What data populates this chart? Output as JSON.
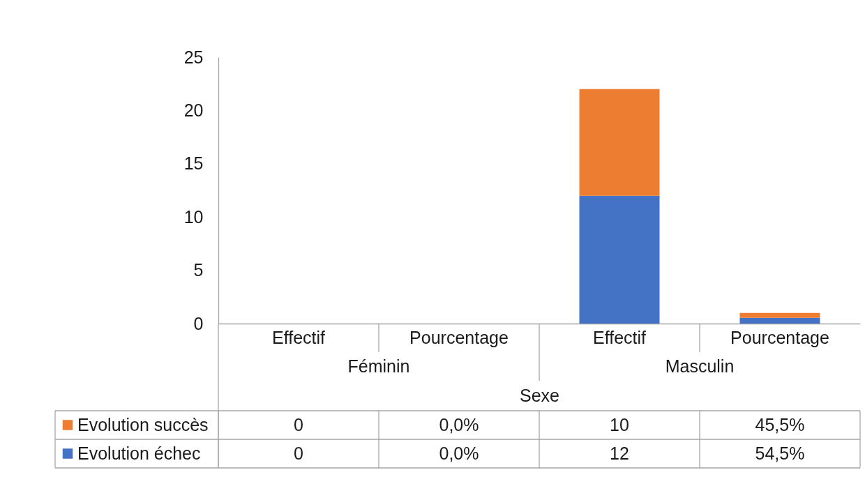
{
  "chart_data": {
    "type": "bar",
    "stacked": true,
    "categories": [
      "Effectif",
      "Pourcentage",
      "Effectif",
      "Pourcentage"
    ],
    "series": [
      {
        "name": "Evolution échec",
        "color": "#4472c4",
        "values": [
          0,
          0,
          12,
          0.545
        ],
        "value_labels": [
          "0",
          "0,0%",
          "12",
          "54,5%"
        ]
      },
      {
        "name": "Evolution succès",
        "color": "#ed7d31",
        "values": [
          0,
          0,
          10,
          0.455
        ],
        "value_labels": [
          "0",
          "0,0%",
          "10",
          "45,5%"
        ]
      }
    ],
    "xlabel": "Sexe",
    "annotations": [
      "Féminin",
      "Masculin"
    ],
    "ylim": [
      0,
      25
    ],
    "yticks": [
      0,
      5,
      10,
      15,
      20,
      25
    ],
    "legend": "bottom",
    "grid": false
  }
}
